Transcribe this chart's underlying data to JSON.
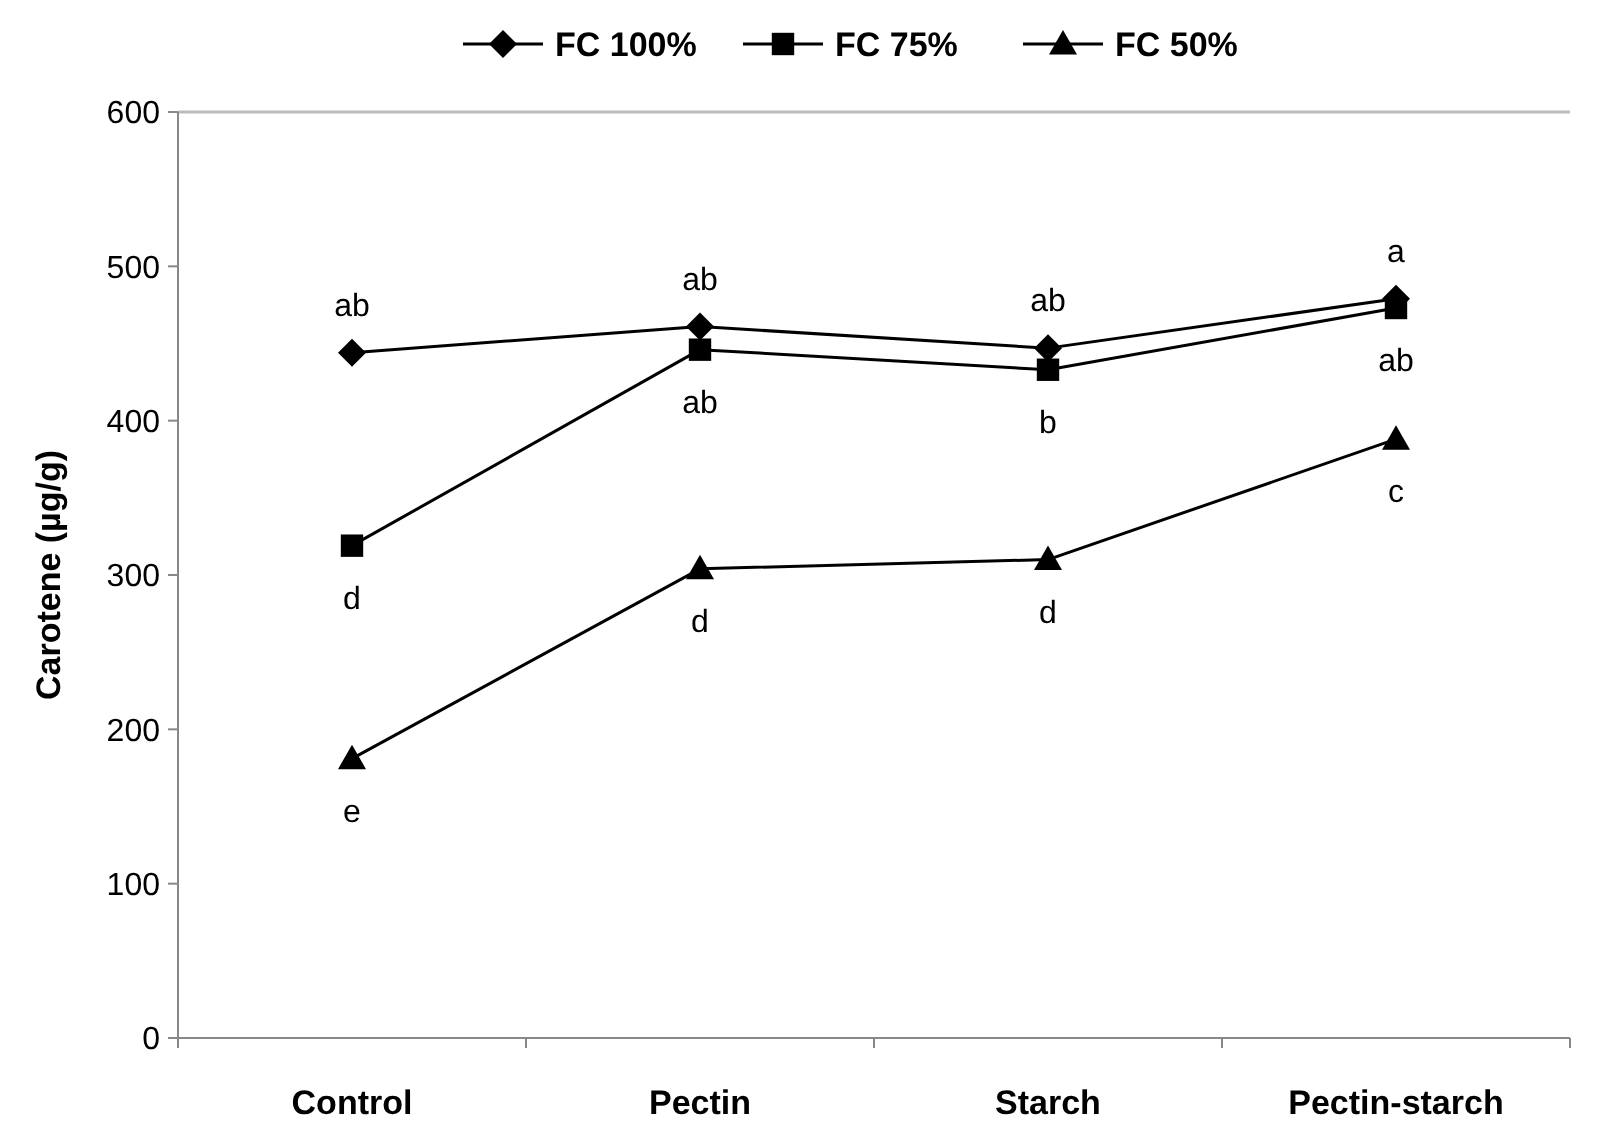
{
  "chart_data": {
    "type": "line",
    "ylabel": "Carotene (µg/g)",
    "categories": [
      "Control",
      "Pectin",
      "Starch",
      "Pectin-starch"
    ],
    "series": [
      {
        "name": "FC 100%",
        "color": "#000000",
        "marker": "diamond",
        "values": [
          444,
          461,
          447,
          479
        ]
      },
      {
        "name": "FC 75%",
        "color": "#000000",
        "marker": "square",
        "values": [
          319,
          446,
          433,
          473
        ]
      },
      {
        "name": "FC 50%",
        "color": "#000000",
        "marker": "triangle",
        "values": [
          181,
          304,
          310,
          388
        ]
      }
    ],
    "ylim": [
      0,
      600
    ],
    "yticks": [
      0,
      100,
      200,
      300,
      400,
      500,
      600
    ],
    "grid": false,
    "legend": "top",
    "line_style": "solid",
    "annotations": [
      {
        "text": "ab",
        "x": "Control",
        "y": 444
      },
      {
        "text": "d",
        "x": "Control",
        "y": 319
      },
      {
        "text": "e",
        "x": "Control",
        "y": 181
      },
      {
        "text": "ab",
        "x": "Pectin",
        "y": 461
      },
      {
        "text": "ab",
        "x": "Pectin",
        "y": 446
      },
      {
        "text": "d",
        "x": "Pectin",
        "y": 304
      },
      {
        "text": "ab",
        "x": "Starch",
        "y": 447
      },
      {
        "text": "b",
        "x": "Starch",
        "y": 433
      },
      {
        "text": "d",
        "x": "Starch",
        "y": 310
      },
      {
        "text": "a",
        "x": "Pectin-starch",
        "y": 479
      },
      {
        "text": "ab",
        "x": "Pectin-starch",
        "y": 473
      },
      {
        "text": "c",
        "x": "Pectin-starch",
        "y": 388
      }
    ]
  }
}
